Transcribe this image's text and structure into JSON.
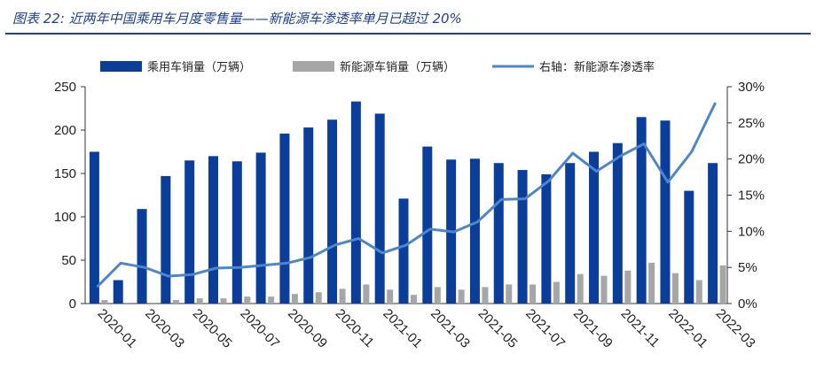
{
  "title": "图表 22:  近两年中国乘用车月度零售量——新能源车渗透率单月已超过 20%",
  "colors": {
    "bar1": "#0a3e9a",
    "bar2": "#a6a6a6",
    "line": "#4f86c9",
    "title": "#1f3f8f"
  },
  "chart_data": {
    "type": "bar",
    "categories": [
      "2020-01",
      "2020-02",
      "2020-03",
      "2020-04",
      "2020-05",
      "2020-06",
      "2020-07",
      "2020-08",
      "2020-09",
      "2020-10",
      "2020-11",
      "2020-12",
      "2021-01",
      "2021-02",
      "2021-03",
      "2021-04",
      "2021-05",
      "2021-06",
      "2021-07",
      "2021-08",
      "2021-09",
      "2021-10",
      "2021-11",
      "2021-12",
      "2022-01",
      "2022-02",
      "2022-03"
    ],
    "x_tick_labels": [
      "2020-01",
      "2020-03",
      "2020-05",
      "2020-07",
      "2020-09",
      "2020-11",
      "2021-01",
      "2021-03",
      "2021-05",
      "2021-07",
      "2021-09",
      "2021-11",
      "2022-01",
      "2022-03"
    ],
    "series": [
      {
        "name": "乘用车销量（万辆）",
        "type": "bar",
        "axis": "left",
        "values": [
          175,
          27,
          109,
          147,
          165,
          170,
          164,
          174,
          196,
          203,
          212,
          233,
          219,
          121,
          181,
          166,
          167,
          162,
          154,
          149,
          162,
          175,
          185,
          215,
          211,
          130,
          162
        ]
      },
      {
        "name": "新能源车销量（万辆）",
        "type": "bar",
        "axis": "left",
        "values": [
          4,
          1,
          1,
          4,
          6,
          6,
          8,
          8,
          11,
          13,
          17,
          22,
          16,
          10,
          19,
          16,
          19,
          22,
          22,
          25,
          34,
          32,
          38,
          47,
          35,
          27,
          44
        ]
      },
      {
        "name": "右轴：新能源车渗透率",
        "type": "line",
        "axis": "right",
        "unit": "%",
        "values": [
          2.3,
          5.6,
          5.0,
          3.8,
          4.0,
          4.9,
          5.0,
          5.3,
          5.6,
          6.4,
          8.1,
          9.0,
          7.0,
          8.1,
          10.3,
          9.9,
          11.3,
          14.4,
          14.5,
          17.0,
          20.8,
          18.3,
          20.4,
          22.1,
          16.8,
          21.0,
          27.8
        ]
      }
    ],
    "y_left": {
      "min": 0,
      "max": 250,
      "ticks": [
        "0",
        "50",
        "100",
        "150",
        "200",
        "250"
      ]
    },
    "y_right": {
      "min": 0,
      "max": 30,
      "ticks": [
        "0%",
        "5%",
        "10%",
        "15%",
        "20%",
        "25%",
        "30%"
      ]
    },
    "legend_position": "top",
    "grid": false
  }
}
